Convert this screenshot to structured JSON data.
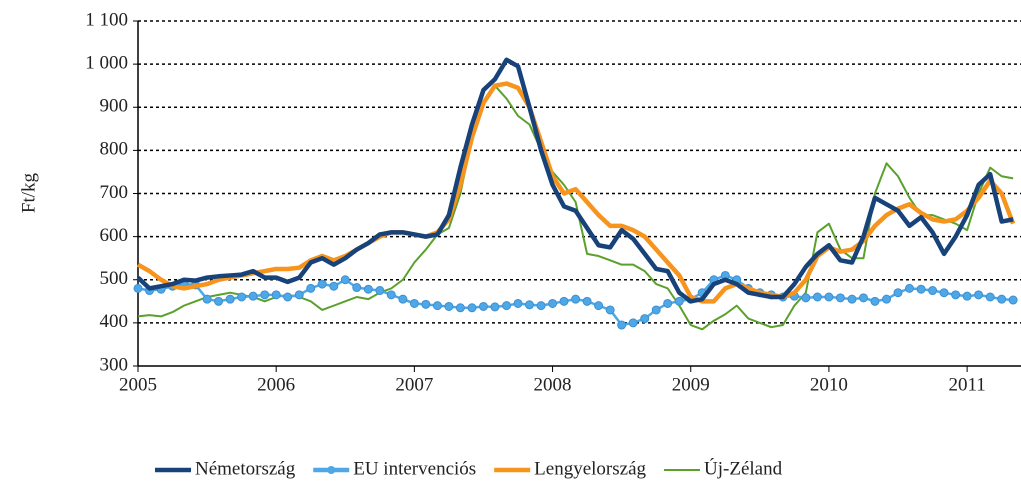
{
  "chart_data": {
    "type": "line",
    "y_label": "Ft/kg",
    "x": [
      2005.0,
      2005.083,
      2005.167,
      2005.25,
      2005.333,
      2005.417,
      2005.5,
      2005.583,
      2005.667,
      2005.75,
      2005.833,
      2005.917,
      2006.0,
      2006.083,
      2006.167,
      2006.25,
      2006.333,
      2006.417,
      2006.5,
      2006.583,
      2006.667,
      2006.75,
      2006.833,
      2006.917,
      2007.0,
      2007.083,
      2007.167,
      2007.25,
      2007.333,
      2007.417,
      2007.5,
      2007.583,
      2007.667,
      2007.75,
      2007.833,
      2007.917,
      2008.0,
      2008.083,
      2008.167,
      2008.25,
      2008.333,
      2008.417,
      2008.5,
      2008.583,
      2008.667,
      2008.75,
      2008.833,
      2008.917,
      2009.0,
      2009.083,
      2009.167,
      2009.25,
      2009.333,
      2009.417,
      2009.5,
      2009.583,
      2009.667,
      2009.75,
      2009.833,
      2009.917,
      2010.0,
      2010.083,
      2010.167,
      2010.25,
      2010.333,
      2010.417,
      2010.5,
      2010.583,
      2010.667,
      2010.75,
      2010.833,
      2010.917,
      2011.0,
      2011.083,
      2011.167,
      2011.25,
      2011.333
    ],
    "series": [
      {
        "name": "Németország",
        "color": "#17427a",
        "values": [
          505,
          480,
          485,
          490,
          500,
          498,
          505,
          508,
          510,
          512,
          520,
          505,
          505,
          495,
          505,
          540,
          550,
          535,
          550,
          570,
          585,
          605,
          610,
          610,
          605,
          600,
          605,
          650,
          760,
          860,
          940,
          965,
          1010,
          995,
          900,
          800,
          720,
          670,
          660,
          620,
          580,
          575,
          615,
          595,
          560,
          525,
          520,
          470,
          450,
          455,
          490,
          500,
          490,
          470,
          465,
          460,
          460,
          490,
          530,
          560,
          580,
          545,
          540,
          600,
          690,
          675,
          660,
          625,
          645,
          610,
          560,
          600,
          650,
          720,
          745,
          635,
          640
        ]
      },
      {
        "name": "EU intervenciós",
        "color": "#4ea8e8",
        "markers": true,
        "values": [
          480,
          475,
          478,
          485,
          490,
          488,
          455,
          450,
          455,
          460,
          462,
          465,
          465,
          460,
          465,
          480,
          490,
          485,
          500,
          482,
          478,
          475,
          465,
          455,
          445,
          443,
          440,
          438,
          435,
          435,
          438,
          437,
          440,
          445,
          442,
          440,
          445,
          450,
          455,
          450,
          440,
          430,
          395,
          400,
          410,
          430,
          445,
          450,
          455,
          470,
          500,
          510,
          500,
          480,
          470,
          465,
          460,
          462,
          458,
          460,
          460,
          458,
          455,
          458,
          450,
          455,
          470,
          480,
          478,
          475,
          470,
          465,
          462,
          465,
          460,
          455,
          453
        ]
      },
      {
        "name": "Lengyelország",
        "color": "#f7941d",
        "values": [
          535,
          520,
          500,
          485,
          480,
          485,
          490,
          500,
          505,
          510,
          515,
          520,
          525,
          525,
          528,
          545,
          555,
          545,
          555,
          570,
          585,
          600,
          610,
          610,
          605,
          600,
          610,
          640,
          720,
          830,
          910,
          950,
          955,
          945,
          900,
          820,
          740,
          700,
          710,
          680,
          650,
          625,
          625,
          615,
          600,
          570,
          540,
          510,
          460,
          450,
          450,
          480,
          490,
          480,
          470,
          465,
          460,
          470,
          500,
          555,
          575,
          565,
          570,
          590,
          625,
          650,
          665,
          675,
          655,
          640,
          635,
          640,
          660,
          690,
          730,
          700,
          630
        ]
      },
      {
        "name": "Új-Zéland",
        "color": "#5aa02c",
        "thin": true,
        "values": [
          415,
          418,
          415,
          425,
          440,
          450,
          460,
          465,
          470,
          465,
          460,
          450,
          460,
          465,
          460,
          450,
          430,
          440,
          450,
          460,
          455,
          470,
          480,
          500,
          540,
          570,
          605,
          620,
          700,
          830,
          910,
          950,
          920,
          880,
          860,
          800,
          750,
          720,
          680,
          560,
          555,
          545,
          535,
          535,
          520,
          490,
          480,
          440,
          395,
          385,
          405,
          420,
          440,
          410,
          400,
          390,
          395,
          440,
          470,
          610,
          630,
          570,
          550,
          550,
          700,
          770,
          740,
          690,
          650,
          650,
          640,
          630,
          615,
          700,
          760,
          740,
          735
        ]
      }
    ],
    "xlim": [
      2005,
      2011.39
    ],
    "xticks": [
      2005,
      2006,
      2007,
      2008,
      2009,
      2010,
      2011
    ],
    "ylim": [
      300,
      1100
    ],
    "yticks": [
      300,
      400,
      500,
      600,
      700,
      800,
      900,
      {
        "value": 1000,
        "label": "1 000"
      },
      {
        "value": 1100,
        "label": "1 100"
      }
    ],
    "grid": true,
    "legend": "bottom"
  }
}
